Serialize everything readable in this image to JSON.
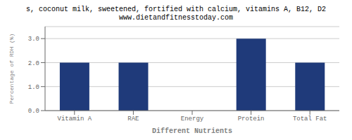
{
  "chart_data": {
    "type": "bar",
    "title": "s, coconut milk, sweetened, fortified with calcium, vitamins A, B12, D2",
    "subtitle": "www.dietandfitnesstoday.com",
    "categories": [
      "Vitamin A",
      "RAE",
      "Energy",
      "Protein",
      "Total Fat"
    ],
    "values": [
      2.0,
      2.0,
      0.0,
      3.0,
      2.0
    ],
    "color": "#1F3A7A",
    "xlabel": "Different Nutrients",
    "ylabel": "Percentage of RDH (%)",
    "ylim": [
      0,
      3.5
    ],
    "yticks": [
      {
        "value": 0,
        "label": "0.0"
      },
      {
        "value": 1,
        "label": "1.0"
      },
      {
        "value": 2,
        "label": "2.0"
      },
      {
        "value": 3,
        "label": "3.0"
      }
    ],
    "grid": true
  }
}
